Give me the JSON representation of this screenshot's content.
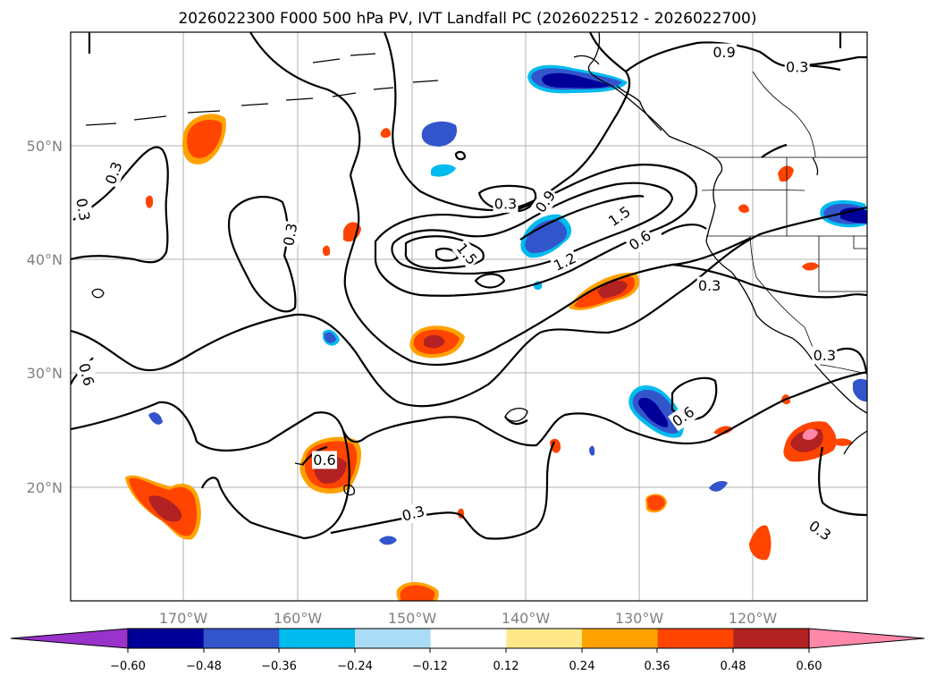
{
  "title": "2026022300 F000 500 hPa PV, IVT Landfall PC (2026022512 - 2026022700)",
  "lon_labels": [
    "170°W",
    "160°W",
    "150°W",
    "140°W",
    "130°W",
    "120°W"
  ],
  "lat_labels": [
    "50°N",
    "40°N",
    "30°N",
    "20°N"
  ],
  "colorbar": {
    "tick_labels": [
      "−0.60",
      "−0.48",
      "−0.36",
      "−0.24",
      "−0.12",
      "0.12",
      "0.24",
      "0.36",
      "0.48",
      "0.60"
    ],
    "colors": [
      "#9933cc",
      "#000099",
      "#3355cc",
      "#00bbee",
      "#aaddf5",
      "#ffffff",
      "#ffe88a",
      "#ffa200",
      "#ff4400",
      "#b22222",
      "#ff88aa"
    ]
  },
  "contour_labels": [
    {
      "text": "0.9",
      "lon": -122.5,
      "lat": 58.2,
      "rot": 0
    },
    {
      "text": "0.3",
      "lon": -116.1,
      "lat": 56.9,
      "rot": 0
    },
    {
      "text": "0.3",
      "lon": -176.1,
      "lat": 47.6,
      "rot": -70
    },
    {
      "text": "0.3",
      "lon": -178.8,
      "lat": 44.4,
      "rot": 80
    },
    {
      "text": "0.3",
      "lon": -160.6,
      "lat": 42.2,
      "rot": -80
    },
    {
      "text": "0.3",
      "lon": -141.7,
      "lat": 44.9,
      "rot": 0
    },
    {
      "text": "0.9",
      "lon": -138.2,
      "lat": 45.1,
      "rot": -55
    },
    {
      "text": "1.5",
      "lon": -131.7,
      "lat": 43.8,
      "rot": -35
    },
    {
      "text": "0.6",
      "lon": -129.9,
      "lat": 41.7,
      "rot": -35
    },
    {
      "text": "1.5",
      "lon": -145.1,
      "lat": 40.5,
      "rot": 50
    },
    {
      "text": "1.2",
      "lon": -136.5,
      "lat": 39.8,
      "rot": -25
    },
    {
      "text": "0.3",
      "lon": -123.8,
      "lat": 37.7,
      "rot": 0
    },
    {
      "text": "0.3",
      "lon": -113.7,
      "lat": 31.6,
      "rot": 0
    },
    {
      "text": "0.6",
      "lon": -178.5,
      "lat": 29.9,
      "rot": 75
    },
    {
      "text": "0.6",
      "lon": -126.1,
      "lat": 26.2,
      "rot": -35
    },
    {
      "text": "0.6",
      "lon": -157.6,
      "lat": 22.4,
      "rot": 0
    },
    {
      "text": "0.3",
      "lon": -149.8,
      "lat": 17.7,
      "rot": -15
    },
    {
      "text": "0.3",
      "lon": -114.1,
      "lat": 16.2,
      "rot": 35
    }
  ]
}
